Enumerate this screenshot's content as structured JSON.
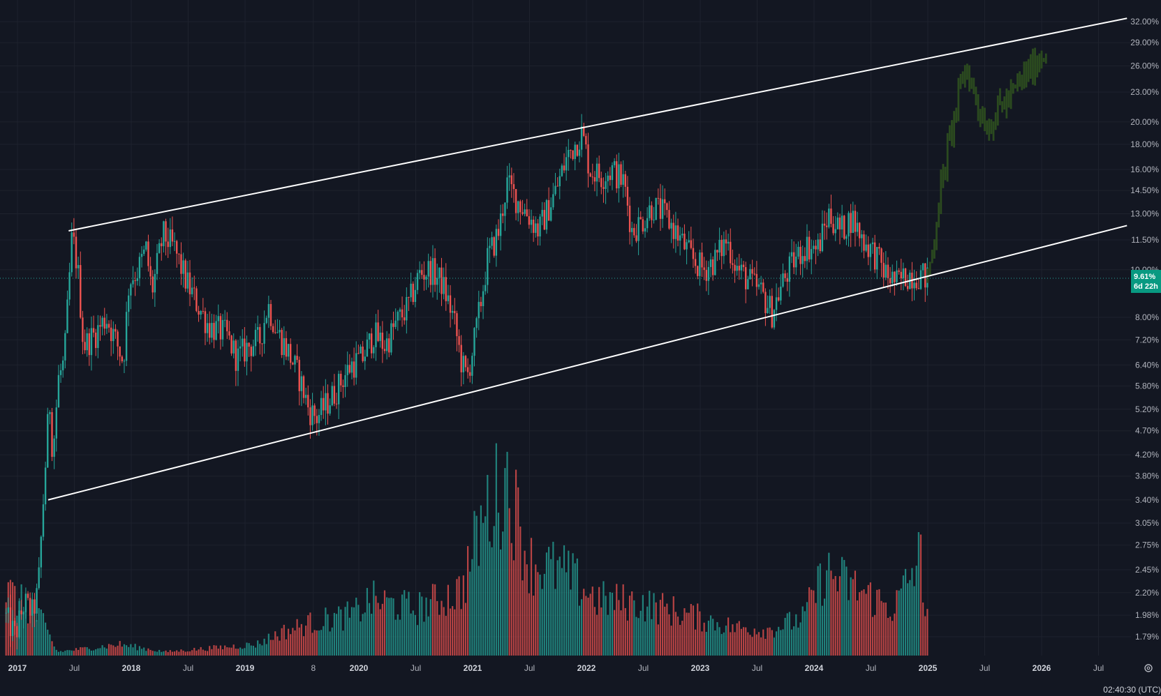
{
  "chart_data": {
    "type": "candlestick",
    "scale": "log",
    "grid": true,
    "price_axis_ticks": [
      "32.00%",
      "29.00%",
      "26.00%",
      "23.00%",
      "20.00%",
      "18.00%",
      "16.00%",
      "14.50%",
      "13.00%",
      "11.50%",
      "10.00%",
      "8.00%",
      "7.20%",
      "6.40%",
      "5.80%",
      "5.20%",
      "4.70%",
      "4.20%",
      "3.80%",
      "3.40%",
      "3.05%",
      "2.75%",
      "2.45%",
      "2.20%",
      "1.98%",
      "1.79%"
    ],
    "price_axis_values": [
      32,
      29,
      26,
      23,
      20,
      18,
      16,
      14.5,
      13,
      11.5,
      10,
      8,
      7.2,
      6.4,
      5.8,
      5.2,
      4.7,
      4.2,
      3.8,
      3.4,
      3.05,
      2.75,
      2.45,
      2.2,
      1.98,
      1.79
    ],
    "time_axis_labels": [
      {
        "text": "2017",
        "t": 2017.0,
        "bold": true
      },
      {
        "text": "Jul",
        "t": 2017.5,
        "bold": false
      },
      {
        "text": "2018",
        "t": 2018.0,
        "bold": true
      },
      {
        "text": "Jul",
        "t": 2018.5,
        "bold": false
      },
      {
        "text": "2019",
        "t": 2019.0,
        "bold": true
      },
      {
        "text": "8",
        "t": 2019.6,
        "bold": false
      },
      {
        "text": "2020",
        "t": 2020.0,
        "bold": true
      },
      {
        "text": "Jul",
        "t": 2020.5,
        "bold": false
      },
      {
        "text": "2021",
        "t": 2021.0,
        "bold": true
      },
      {
        "text": "Jul",
        "t": 2021.5,
        "bold": false
      },
      {
        "text": "2022",
        "t": 2022.0,
        "bold": true
      },
      {
        "text": "Jul",
        "t": 2022.5,
        "bold": false
      },
      {
        "text": "2023",
        "t": 2023.0,
        "bold": true
      },
      {
        "text": "Jul",
        "t": 2023.5,
        "bold": false
      },
      {
        "text": "2024",
        "t": 2024.0,
        "bold": true
      },
      {
        "text": "Jul",
        "t": 2024.5,
        "bold": false
      },
      {
        "text": "2025",
        "t": 2025.0,
        "bold": true
      },
      {
        "text": "Jul",
        "t": 2025.5,
        "bold": false
      },
      {
        "text": "2026",
        "t": 2026.0,
        "bold": true
      },
      {
        "text": "Jul",
        "t": 2026.5,
        "bold": false
      }
    ],
    "price_path": [
      [
        2016.9,
        2.0
      ],
      [
        2017.0,
        1.8
      ],
      [
        2017.08,
        2.1
      ],
      [
        2017.15,
        2.0
      ],
      [
        2017.2,
        2.2
      ],
      [
        2017.25,
        3.5
      ],
      [
        2017.3,
        5.5
      ],
      [
        2017.33,
        4.2
      ],
      [
        2017.38,
        6.0
      ],
      [
        2017.43,
        6.5
      ],
      [
        2017.5,
        11.8
      ],
      [
        2017.55,
        10.0
      ],
      [
        2017.6,
        7.0
      ],
      [
        2017.7,
        7.4
      ],
      [
        2017.8,
        8.0
      ],
      [
        2017.9,
        7.0
      ],
      [
        2017.95,
        6.5
      ],
      [
        2018.0,
        9.5
      ],
      [
        2018.08,
        10.0
      ],
      [
        2018.15,
        11.0
      ],
      [
        2018.2,
        9.0
      ],
      [
        2018.3,
        11.8
      ],
      [
        2018.4,
        11.0
      ],
      [
        2018.5,
        9.5
      ],
      [
        2018.6,
        8.5
      ],
      [
        2018.7,
        7.7
      ],
      [
        2018.85,
        7.4
      ],
      [
        2018.95,
        6.6
      ],
      [
        2019.05,
        7.0
      ],
      [
        2019.15,
        7.2
      ],
      [
        2019.22,
        8.5
      ],
      [
        2019.3,
        7.5
      ],
      [
        2019.4,
        6.8
      ],
      [
        2019.5,
        6.0
      ],
      [
        2019.58,
        5.2
      ],
      [
        2019.65,
        5.0
      ],
      [
        2019.8,
        5.6
      ],
      [
        2019.95,
        6.4
      ],
      [
        2020.05,
        6.6
      ],
      [
        2020.15,
        7.4
      ],
      [
        2020.25,
        7.0
      ],
      [
        2020.35,
        7.8
      ],
      [
        2020.45,
        8.4
      ],
      [
        2020.55,
        9.8
      ],
      [
        2020.65,
        10.0
      ],
      [
        2020.75,
        9.4
      ],
      [
        2020.85,
        8.0
      ],
      [
        2020.92,
        6.5
      ],
      [
        2020.97,
        6.0
      ],
      [
        2021.05,
        7.5
      ],
      [
        2021.15,
        10.5
      ],
      [
        2021.25,
        12.0
      ],
      [
        2021.32,
        15.0
      ],
      [
        2021.4,
        14.0
      ],
      [
        2021.5,
        13.0
      ],
      [
        2021.6,
        12.0
      ],
      [
        2021.75,
        14.5
      ],
      [
        2021.85,
        17.0
      ],
      [
        2021.98,
        19.0
      ],
      [
        2022.05,
        16.0
      ],
      [
        2022.15,
        15.5
      ],
      [
        2022.25,
        16.0
      ],
      [
        2022.35,
        15.0
      ],
      [
        2022.42,
        12.0
      ],
      [
        2022.5,
        12.5
      ],
      [
        2022.6,
        13.5
      ],
      [
        2022.7,
        13.0
      ],
      [
        2022.8,
        12.0
      ],
      [
        2022.95,
        10.5
      ],
      [
        2023.05,
        10.0
      ],
      [
        2023.15,
        10.5
      ],
      [
        2023.25,
        11.5
      ],
      [
        2023.35,
        10.0
      ],
      [
        2023.45,
        9.5
      ],
      [
        2023.55,
        9.0
      ],
      [
        2023.65,
        8.2
      ],
      [
        2023.75,
        9.5
      ],
      [
        2023.85,
        10.5
      ],
      [
        2023.95,
        11.2
      ],
      [
        2024.05,
        11.0
      ],
      [
        2024.15,
        13.0
      ],
      [
        2024.25,
        12.0
      ],
      [
        2024.35,
        12.8
      ],
      [
        2024.45,
        11.5
      ],
      [
        2024.55,
        10.8
      ],
      [
        2024.65,
        9.8
      ],
      [
        2024.75,
        9.4
      ],
      [
        2024.85,
        9.8
      ],
      [
        2024.95,
        9.8
      ],
      [
        2025.0,
        9.61
      ]
    ],
    "projection_path": [
      [
        2025.0,
        9.61
      ],
      [
        2025.05,
        10.5
      ],
      [
        2025.12,
        14.0
      ],
      [
        2025.2,
        18.0
      ],
      [
        2025.28,
        22.0
      ],
      [
        2025.35,
        26.0
      ],
      [
        2025.4,
        24.0
      ],
      [
        2025.48,
        21.0
      ],
      [
        2025.55,
        19.5
      ],
      [
        2025.65,
        21.5
      ],
      [
        2025.75,
        22.5
      ],
      [
        2025.85,
        24.5
      ],
      [
        2025.95,
        26.0
      ],
      [
        2026.05,
        28.0
      ]
    ],
    "channel_upper": [
      [
        2017.45,
        12.0
      ],
      [
        2026.75,
        32.5
      ]
    ],
    "channel_lower": [
      [
        2017.27,
        3.4
      ],
      [
        2026.75,
        12.3
      ]
    ],
    "current_value": "9.61%",
    "countdown": "6d 22h",
    "current_level": 9.61
  },
  "ui": {
    "clock": "02:40:30 (UTC)",
    "price_label": "9.61%",
    "countdown_label": "6d 22h"
  },
  "colors": {
    "background": "#131722",
    "grid": "#1e222d",
    "up": "#26a69a",
    "down": "#ef5350",
    "projection": "#2b4a1f",
    "channel": "#ffffff",
    "badge": "#089981"
  }
}
